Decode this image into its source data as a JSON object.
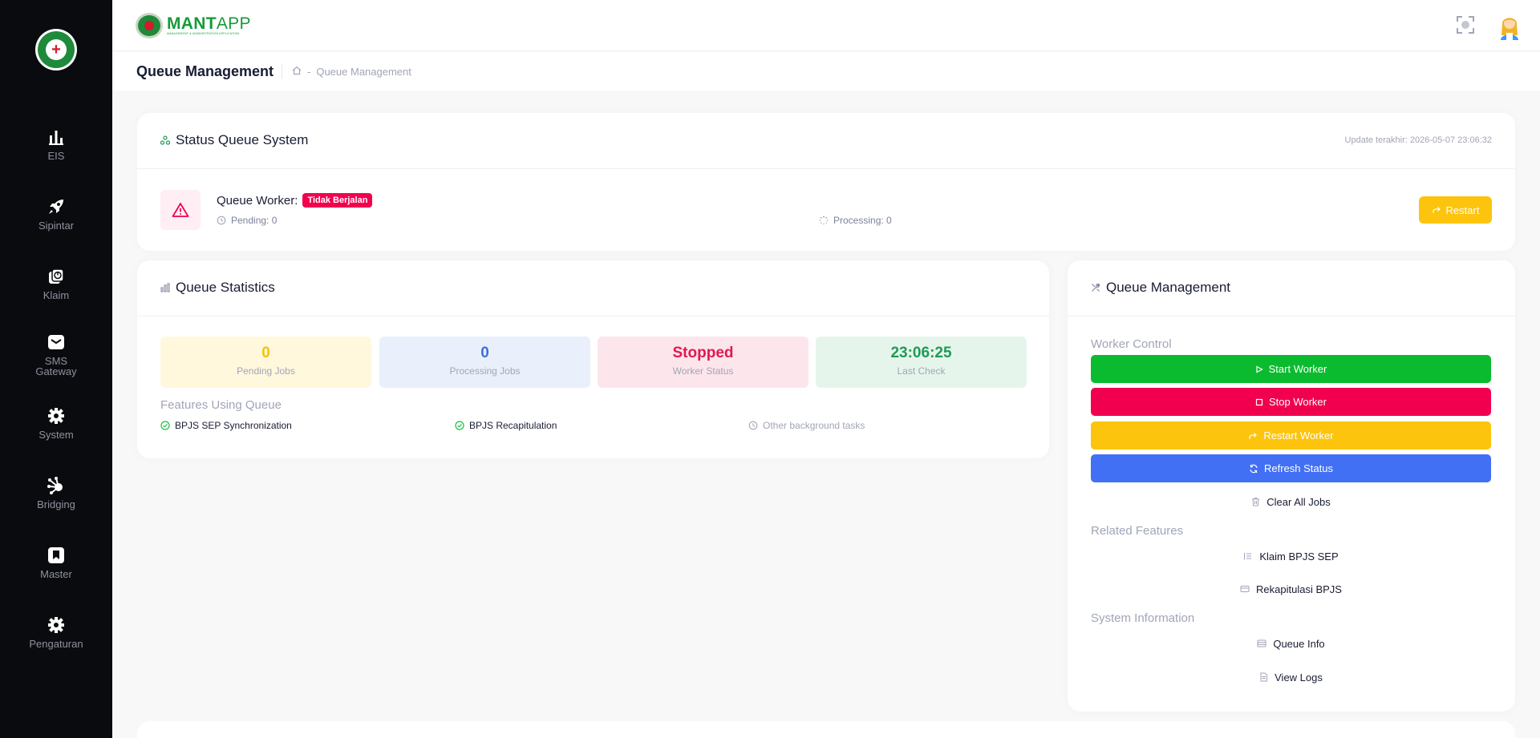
{
  "sidebar": {
    "items": [
      {
        "label": "EIS",
        "icon": "bar-chart-icon"
      },
      {
        "label": "Sipintar",
        "icon": "rocket-icon"
      },
      {
        "label": "Klaim",
        "icon": "pie-chart-icon"
      },
      {
        "label": "SMS Gateway",
        "label_line1": "SMS",
        "label_line2": "Gateway",
        "icon": "envelope-icon"
      },
      {
        "label": "System",
        "icon": "gear-icon"
      },
      {
        "label": "Bridging",
        "icon": "network-icon"
      },
      {
        "label": "Master",
        "icon": "bookmark-icon"
      },
      {
        "label": "Pengaturan",
        "icon": "gear-icon"
      }
    ]
  },
  "header": {
    "brand_bold": "MANT",
    "brand_light": "APP",
    "brand_tagline": "MANAGEMENT & ADMINISTRATION APPLICATION"
  },
  "subheader": {
    "page_title": "Queue Management",
    "breadcrumb": [
      "Queue Management"
    ]
  },
  "status_card": {
    "title": "Status Queue System",
    "updated": "Update terakhir: 2026-05-07 23:06:32",
    "worker_label": "Queue Worker:",
    "worker_badge": "Tidak Berjalan",
    "pending": "Pending: 0",
    "processing": "Processing: 0",
    "restart_label": "Restart"
  },
  "stats_card": {
    "title": "Queue Statistics",
    "stats": [
      {
        "value": "0",
        "caption": "Pending Jobs",
        "color": "#f6c000",
        "bg": "#fff8dd"
      },
      {
        "value": "0",
        "caption": "Processing Jobs",
        "color": "#3e6fd8",
        "bg": "#e9f0fc"
      },
      {
        "value": "Stopped",
        "caption": "Worker Status",
        "color": "#e0194f",
        "bg": "#fde5ec"
      },
      {
        "value": "23:06:25",
        "caption": "Last Check",
        "color": "#1e9b55",
        "bg": "#e6f5ec"
      }
    ],
    "features_label": "Features Using Queue",
    "features": [
      {
        "label": "BPJS SEP Synchronization",
        "active": true
      },
      {
        "label": "BPJS Recapitulation",
        "active": true
      },
      {
        "label": "Other background tasks",
        "active": false
      }
    ]
  },
  "management_card": {
    "title": "Queue Management",
    "worker_control_label": "Worker Control",
    "buttons": [
      {
        "label": "Start Worker",
        "color": "#0bbb2f"
      },
      {
        "label": "Stop Worker",
        "color": "#f1004f"
      },
      {
        "label": "Restart Worker",
        "color": "#fcc40c"
      },
      {
        "label": "Refresh Status",
        "color": "#4270f5"
      }
    ],
    "clear_label": "Clear All Jobs",
    "related_label": "Related Features",
    "related": [
      "Klaim BPJS SEP",
      "Rekapitulasi BPJS"
    ],
    "system_label": "System Information",
    "system": [
      "Queue Info",
      "View Logs"
    ]
  }
}
